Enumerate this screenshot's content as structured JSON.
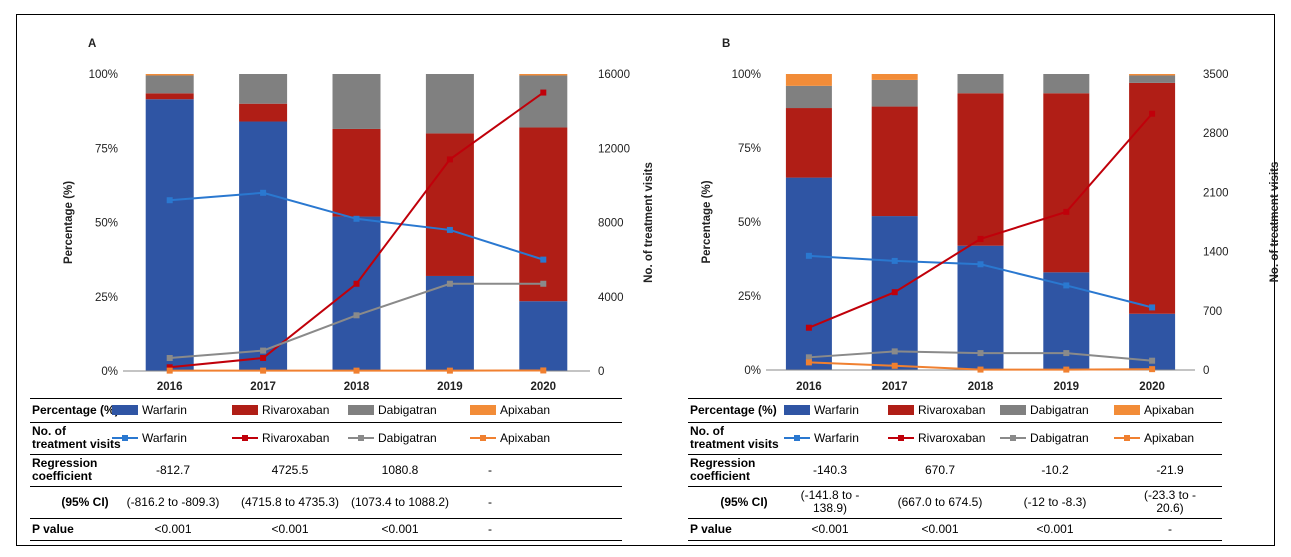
{
  "colors": {
    "Warfarin": "#2f55a4",
    "Rivaroxaban": "#b01e16",
    "Dabigatran": "#808080",
    "Apixaban": "#f28c38",
    "warfarin_line": "#2a78d0",
    "rivaroxaban_line": "#c0000a",
    "dabigatran_line": "#8a8a8a",
    "apixaban_line": "#f08030"
  },
  "chart_data": [
    {
      "panel": "A",
      "type": "bar",
      "stacked": true,
      "categories": [
        "2016",
        "2017",
        "2018",
        "2019",
        "2020"
      ],
      "ylabel": "Percentage (%)",
      "y2label": "No. of treatment visits",
      "ylim": [
        0,
        100
      ],
      "y2lim": [
        0,
        16000
      ],
      "yticks": [
        "0%",
        "25%",
        "50%",
        "75%",
        "100%"
      ],
      "y2ticks": [
        "0",
        "4000",
        "8000",
        "12000",
        "16000"
      ],
      "series": [
        {
          "name": "Warfarin",
          "values": [
            91.5,
            84,
            52,
            32,
            23.5
          ]
        },
        {
          "name": "Rivaroxaban",
          "values": [
            2,
            6,
            29.5,
            48,
            58.5
          ]
        },
        {
          "name": "Dabigatran",
          "values": [
            6,
            10,
            18.5,
            20,
            17.5
          ]
        },
        {
          "name": "Apixaban",
          "values": [
            0.5,
            0,
            0,
            0,
            0.5
          ]
        }
      ],
      "lines": [
        {
          "name": "Warfarin",
          "values": [
            9200,
            9600,
            8200,
            7600,
            6000
          ]
        },
        {
          "name": "Rivaroxaban",
          "values": [
            200,
            700,
            4700,
            11400,
            15000
          ]
        },
        {
          "name": "Dabigatran",
          "values": [
            700,
            1100,
            3000,
            4700,
            4700
          ]
        },
        {
          "name": "Apixaban",
          "values": [
            20,
            20,
            20,
            20,
            30
          ]
        }
      ]
    },
    {
      "panel": "B",
      "type": "bar",
      "stacked": true,
      "categories": [
        "2016",
        "2017",
        "2018",
        "2019",
        "2020"
      ],
      "ylabel": "Percentage (%)",
      "y2label": "No. of treatment visits",
      "ylim": [
        0,
        100
      ],
      "y2lim": [
        0,
        3500
      ],
      "yticks": [
        "0%",
        "25%",
        "50%",
        "75%",
        "100%"
      ],
      "y2ticks": [
        "0",
        "700",
        "1400",
        "2100",
        "2800",
        "3500"
      ],
      "series": [
        {
          "name": "Warfarin",
          "values": [
            65,
            52,
            42,
            33,
            19
          ]
        },
        {
          "name": "Rivaroxaban",
          "values": [
            23.5,
            37,
            51.5,
            60.5,
            78
          ]
        },
        {
          "name": "Dabigatran",
          "values": [
            7.5,
            9,
            6.5,
            6.5,
            2.5
          ]
        },
        {
          "name": "Apixaban",
          "values": [
            4,
            2,
            0,
            0,
            0.5
          ]
        }
      ],
      "lines": [
        {
          "name": "Warfarin",
          "values": [
            1350,
            1290,
            1250,
            1000,
            740
          ]
        },
        {
          "name": "Rivaroxaban",
          "values": [
            500,
            920,
            1550,
            1870,
            3030
          ]
        },
        {
          "name": "Dabigatran",
          "values": [
            150,
            220,
            200,
            200,
            110
          ]
        },
        {
          "name": "Apixaban",
          "values": [
            90,
            50,
            5,
            5,
            10
          ]
        }
      ]
    }
  ],
  "tableA": {
    "row1_label": "Percentage (%)",
    "row2_label": "No. of\ntreatment visits",
    "row3_label": "Regression\ncoefficient",
    "row4_label": "(95% CI)",
    "row5_label": "P value",
    "legend": [
      "Warfarin",
      "Rivaroxaban",
      "Dabigatran",
      "Apixaban"
    ],
    "coef": [
      "-812.7",
      "4725.5",
      "1080.8",
      "-"
    ],
    "ci": [
      "(-816.2 to -809.3)",
      "(4715.8 to 4735.3)",
      "(1073.4 to 1088.2)",
      "-"
    ],
    "p": [
      "<0.001",
      "<0.001",
      "<0.001",
      "-"
    ]
  },
  "tableB": {
    "row1_label": "Percentage (%)",
    "row2_label": "No. of\ntreatment visits",
    "row3_label": "Regression\ncoefficient",
    "row4_label": "(95% CI)",
    "row5_label": "P value",
    "legend": [
      "Warfarin",
      "Rivaroxaban",
      "Dabigatran",
      "Apixaban"
    ],
    "coef": [
      "-140.3",
      "670.7",
      "-10.2",
      "-21.9"
    ],
    "ci": [
      "(-141.8 to -\n138.9)",
      "(667.0 to 674.5)",
      "(-12 to -8.3)",
      "(-23.3 to -\n20.6)"
    ],
    "p": [
      "<0.001",
      "<0.001",
      "<0.001",
      "-"
    ]
  }
}
